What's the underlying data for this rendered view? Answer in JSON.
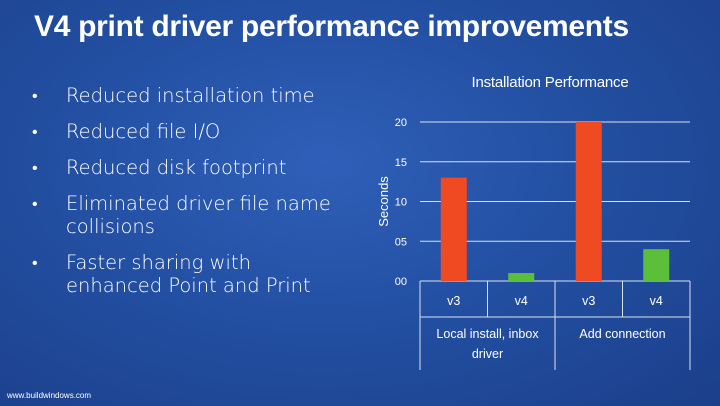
{
  "slide": {
    "title": "V4 print driver performance improvements",
    "bullets": [
      "Reduced installation time",
      "Reduced file I/O",
      "Reduced disk footprint",
      "Eliminated driver file name collisions",
      "Faster sharing with enhanced Point and Print"
    ],
    "footer": "www.buildwindows.com"
  },
  "chart_data": {
    "type": "bar",
    "title": "Installation Performance",
    "ylabel": "Seconds",
    "ylim": [
      0,
      20
    ],
    "yticks": [
      {
        "value": 0,
        "label": "00"
      },
      {
        "value": 5,
        "label": "05"
      },
      {
        "value": 10,
        "label": "10"
      },
      {
        "value": 15,
        "label": "15"
      },
      {
        "value": 20,
        "label": "20"
      }
    ],
    "grid": true,
    "categories": [
      {
        "label": "v3",
        "group": "Local install, inbox driver",
        "value": 13,
        "color": "#f04a23"
      },
      {
        "label": "v4",
        "group": "Local install, inbox driver",
        "value": 1,
        "color": "#5cbf3a"
      },
      {
        "label": "v3",
        "group": "Add connection",
        "value": 20,
        "color": "#f04a23"
      },
      {
        "label": "v4",
        "group": "Add connection",
        "value": 4,
        "color": "#5cbf3a"
      }
    ],
    "groups": [
      {
        "label_lines": [
          "Local install, inbox",
          "driver"
        ]
      },
      {
        "label_lines": [
          "Add connection"
        ]
      }
    ]
  }
}
